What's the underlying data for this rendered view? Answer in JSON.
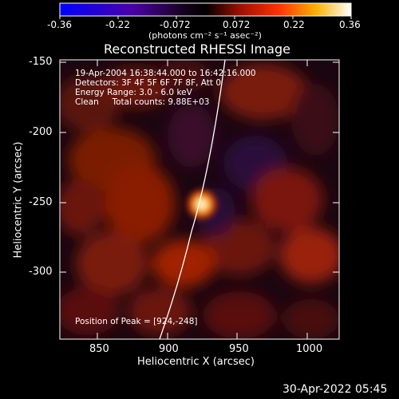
{
  "colorbar": {
    "tick_labels": [
      "-0.36",
      "-0.22",
      "-0.072",
      "0.072",
      "0.22",
      "0.36"
    ],
    "units_label": "(photons cm⁻² s⁻¹ asec⁻²)"
  },
  "title": "Reconstructed RHESSI Image",
  "info": {
    "time_range": "19-Apr-2004 16:38:44.000 to 16:42:16.000",
    "detectors": "Detectors: 3F 4F 5F 6F 7F 8F, Att 0",
    "energy_range": "Energy Range: 3.0 - 6.0 keV",
    "clean": "Clean     Total counts: 9.88E+03"
  },
  "peak_label": "Position of Peak = [924,-248]",
  "axes": {
    "xlabel": "Heliocentric X (arcsec)",
    "ylabel": "Heliocentric Y (arcsec)",
    "x_ticks": [
      "850",
      "900",
      "950",
      "1000"
    ],
    "y_ticks": [
      "-150",
      "-200",
      "-250",
      "-300"
    ]
  },
  "timestamp": "30-Apr-2022 05:45"
}
